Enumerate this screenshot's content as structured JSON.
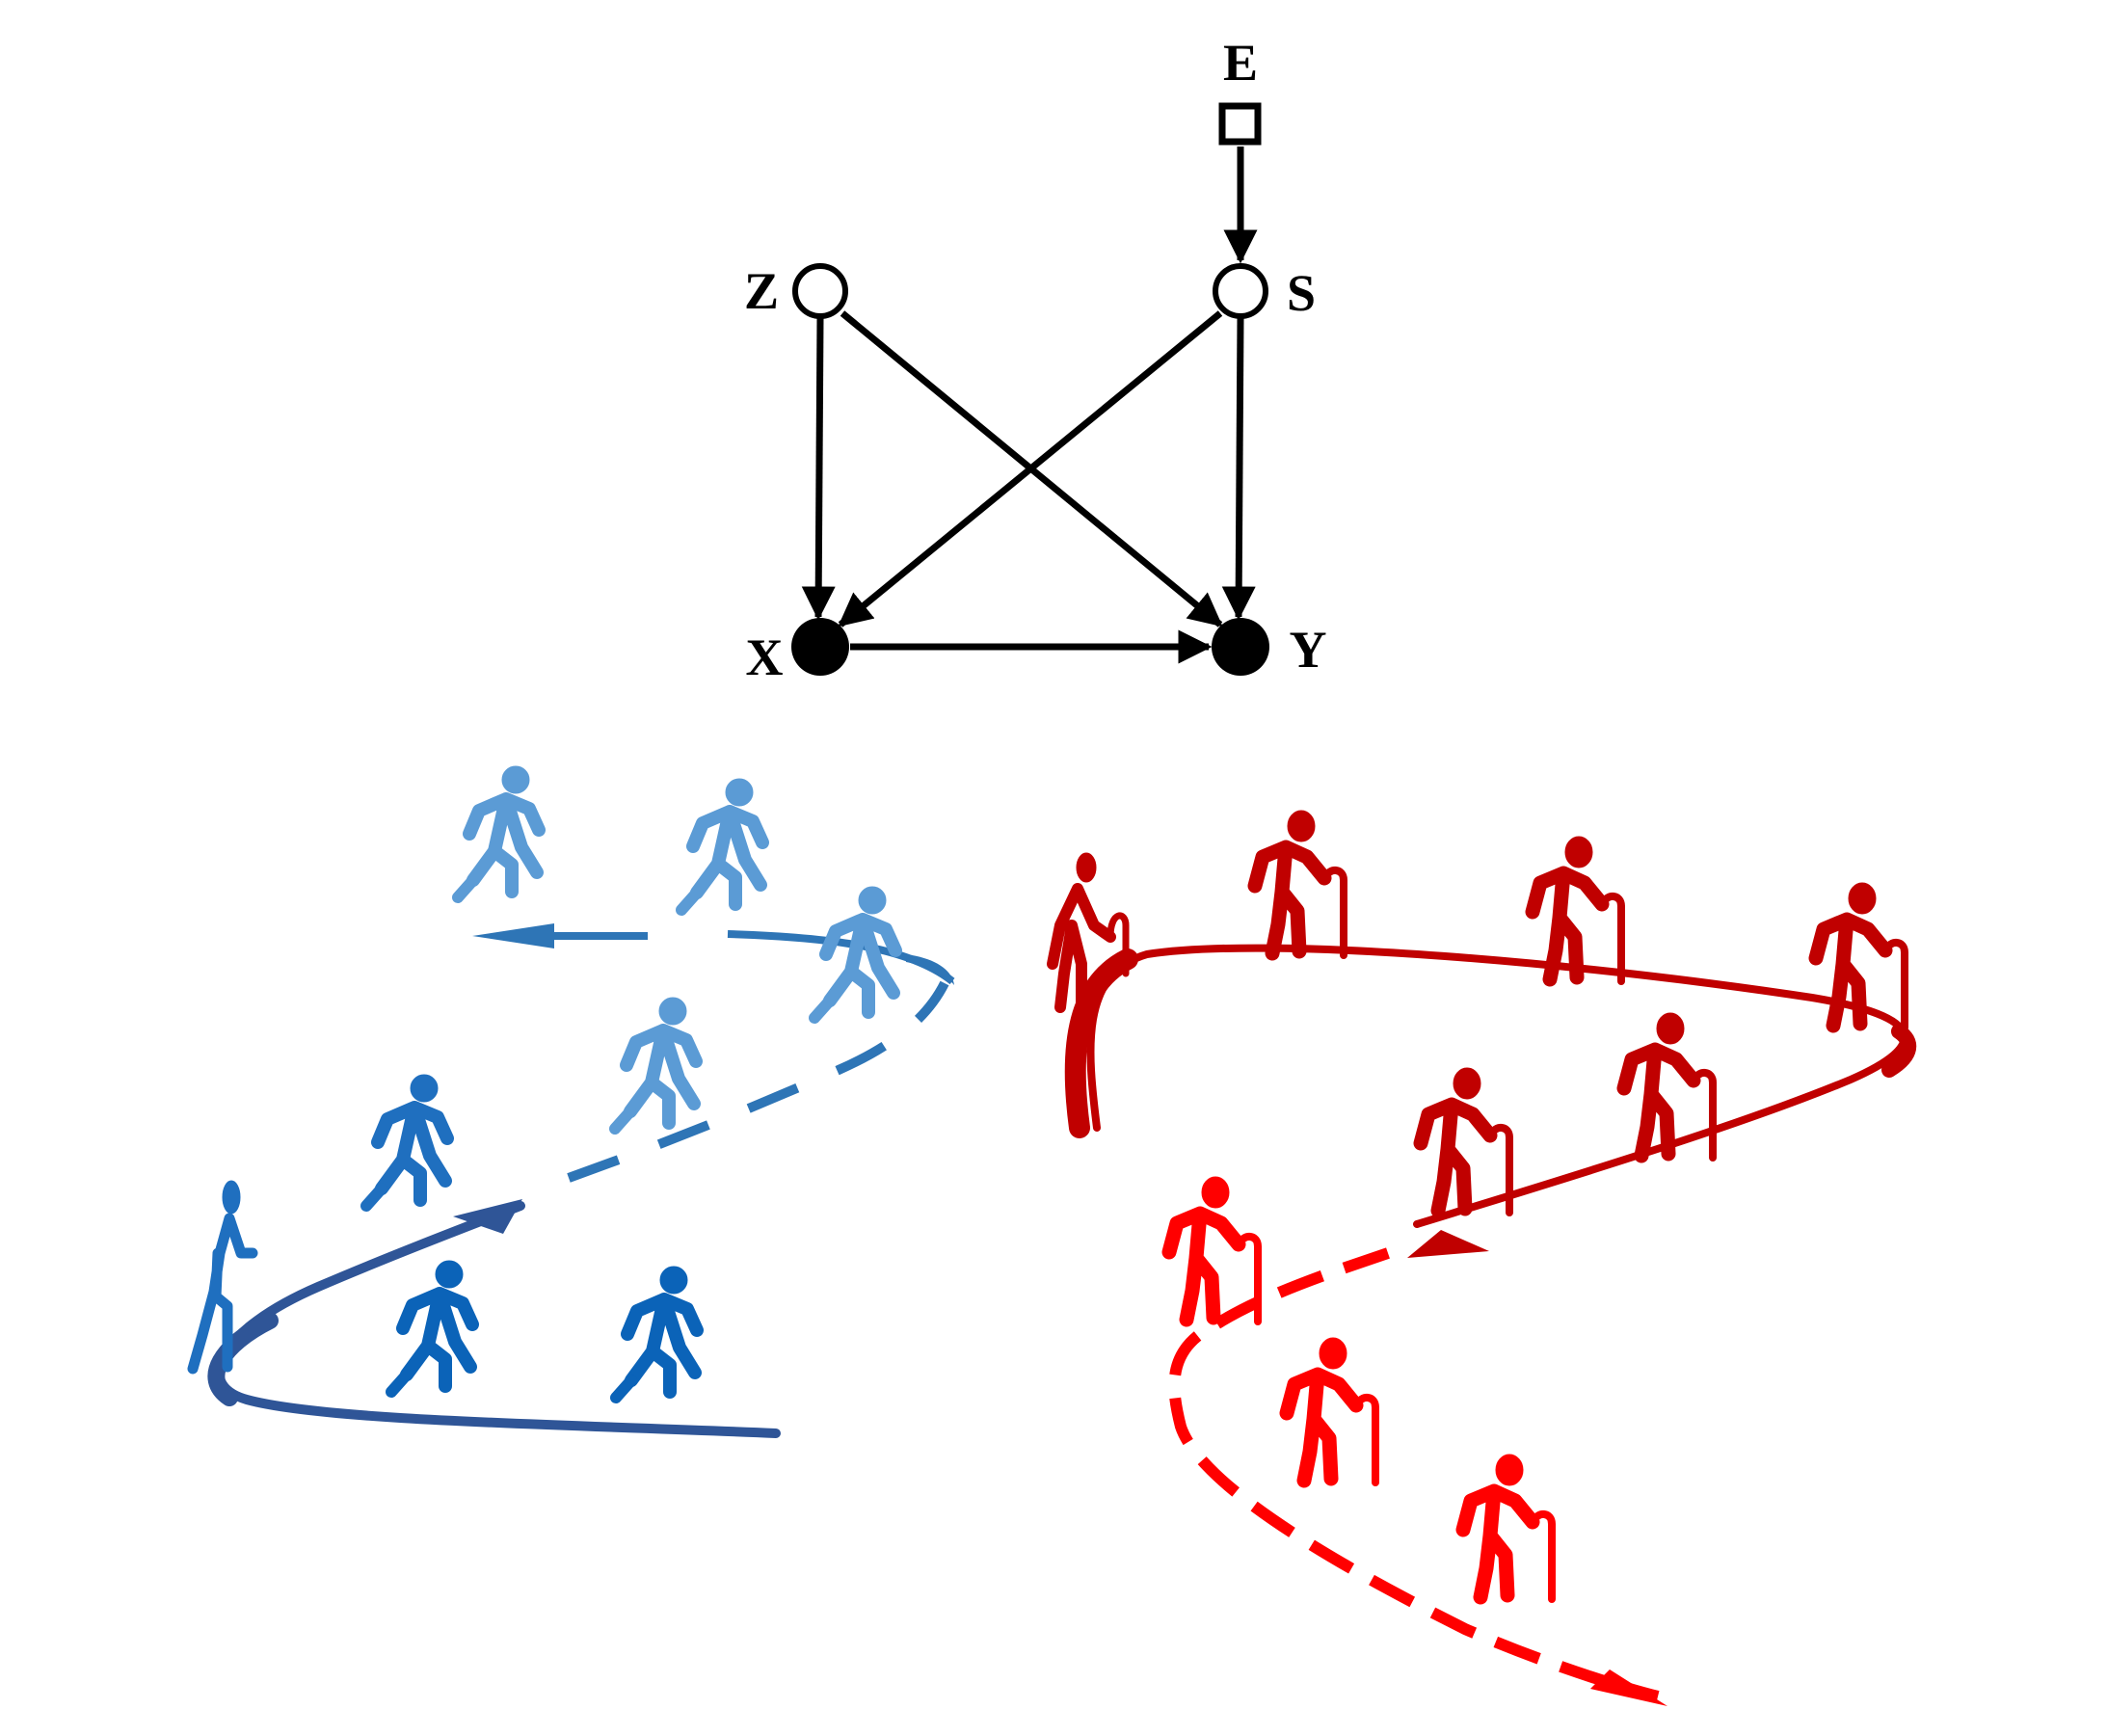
{
  "diagram": {
    "nodes": [
      {
        "id": "E",
        "label": "E",
        "shape": "square",
        "fill": "open"
      },
      {
        "id": "Z",
        "label": "Z",
        "shape": "circle",
        "fill": "open"
      },
      {
        "id": "S",
        "label": "S",
        "shape": "circle",
        "fill": "open"
      },
      {
        "id": "X",
        "label": "X",
        "shape": "circle",
        "fill": "filled"
      },
      {
        "id": "Y",
        "label": "Y",
        "shape": "circle",
        "fill": "filled"
      }
    ],
    "edges": [
      {
        "from": "E",
        "to": "S"
      },
      {
        "from": "Z",
        "to": "X"
      },
      {
        "from": "Z",
        "to": "Y"
      },
      {
        "from": "S",
        "to": "X"
      },
      {
        "from": "S",
        "to": "Y"
      },
      {
        "from": "X",
        "to": "Y"
      }
    ]
  },
  "illustration": {
    "left_group": {
      "figure": "walking-person",
      "colors": [
        "#5b9bd5",
        "#1f6fbf",
        "#0b63b8"
      ],
      "path_color": "#2f5597"
    },
    "right_group": {
      "figure": "elderly-person-with-cane",
      "colors": [
        "#c00000",
        "#ff0000"
      ],
      "path_color": "#c00000"
    }
  },
  "colors": {
    "diagram": "#000000",
    "background": "#ffffff"
  }
}
